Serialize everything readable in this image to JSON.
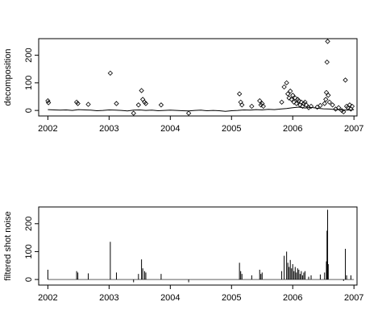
{
  "chart_data": [
    {
      "type": "scatter",
      "ylabel": "decomposition",
      "xlim": [
        2001.85,
        2007.05
      ],
      "ylim": [
        -20,
        260
      ],
      "x_ticks": [
        2002,
        2003,
        2004,
        2005,
        2006,
        2007
      ],
      "x_tick_labels": [
        "2002",
        "2003",
        "2004",
        "2005",
        "2006",
        "2007"
      ],
      "y_ticks": [
        0,
        100,
        200
      ],
      "y_tick_labels": [
        "0",
        "100",
        "200"
      ],
      "grid": false,
      "series": [
        {
          "style": "line",
          "x": [
            2002.0,
            2002.1,
            2002.2,
            2002.3,
            2002.4,
            2002.5,
            2002.6,
            2002.7,
            2002.8,
            2002.9,
            2003.0,
            2003.1,
            2003.2,
            2003.3,
            2003.4,
            2003.5,
            2003.6,
            2003.7,
            2003.8,
            2003.9,
            2004.0,
            2004.1,
            2004.2,
            2004.3,
            2004.4,
            2004.5,
            2004.6,
            2004.7,
            2004.8,
            2004.9,
            2005.0,
            2005.1,
            2005.2,
            2005.3,
            2005.4,
            2005.5,
            2005.6,
            2005.7,
            2005.8,
            2005.9,
            2006.0,
            2006.1,
            2006.2,
            2006.3,
            2006.4,
            2006.5,
            2006.6,
            2006.7,
            2006.8,
            2006.9,
            2007.0
          ],
          "y": [
            3,
            2,
            1,
            2,
            0,
            3,
            2,
            1,
            -1,
            0,
            2,
            1,
            0,
            -2,
            1,
            2,
            0,
            1,
            -1,
            0,
            1,
            0,
            -1,
            -2,
            0,
            1,
            -1,
            0,
            -1,
            -3,
            -1,
            0,
            2,
            1,
            3,
            2,
            4,
            3,
            5,
            7,
            10,
            12,
            9,
            11,
            8,
            6,
            5,
            3,
            2,
            1,
            3
          ]
        },
        {
          "style": "points",
          "x": [
            2002.0,
            2002.01,
            2002.47,
            2002.49,
            2002.66,
            2003.02,
            2003.12,
            2003.4,
            2003.48,
            2003.53,
            2003.55,
            2003.58,
            2003.6,
            2003.85,
            2004.3,
            2005.13,
            2005.15,
            2005.17,
            2005.33,
            2005.46,
            2005.48,
            2005.5,
            2005.52,
            2005.82,
            2005.86,
            2005.9,
            2005.92,
            2005.94,
            2005.96,
            2005.98,
            2006.0,
            2006.02,
            2006.04,
            2006.06,
            2006.08,
            2006.1,
            2006.12,
            2006.14,
            2006.16,
            2006.18,
            2006.2,
            2006.22,
            2006.26,
            2006.3,
            2006.4,
            2006.45,
            2006.52,
            2006.54,
            2006.55,
            2006.56,
            2006.57,
            2006.58,
            2006.6,
            2006.65,
            2006.7,
            2006.75,
            2006.8,
            2006.83,
            2006.86,
            2006.88,
            2006.9,
            2006.93,
            2006.95,
            2006.97
          ],
          "y": [
            35,
            28,
            30,
            25,
            22,
            135,
            25,
            -10,
            20,
            72,
            40,
            30,
            25,
            20,
            -10,
            60,
            30,
            20,
            15,
            35,
            20,
            25,
            15,
            30,
            85,
            100,
            60,
            45,
            70,
            40,
            55,
            30,
            45,
            25,
            40,
            35,
            20,
            30,
            15,
            25,
            30,
            20,
            10,
            15,
            12,
            18,
            25,
            40,
            65,
            175,
            250,
            55,
            30,
            20,
            5,
            10,
            0,
            -5,
            110,
            15,
            10,
            20,
            5,
            15
          ]
        }
      ]
    },
    {
      "type": "line",
      "ylabel": "filtered shot noise",
      "xlim": [
        2001.85,
        2007.05
      ],
      "ylim": [
        -20,
        260
      ],
      "x_ticks": [
        2002,
        2003,
        2004,
        2005,
        2006,
        2007
      ],
      "x_tick_labels": [
        "2002",
        "2003",
        "2004",
        "2005",
        "2006",
        "2007"
      ],
      "y_ticks": [
        0,
        100,
        200
      ],
      "y_tick_labels": [
        "0",
        "100",
        "200"
      ],
      "grid": false,
      "series": [
        {
          "style": "spikes",
          "x": [
            2002.0,
            2002.47,
            2002.49,
            2002.66,
            2003.02,
            2003.12,
            2003.4,
            2003.48,
            2003.53,
            2003.55,
            2003.58,
            2003.6,
            2003.85,
            2004.3,
            2005.13,
            2005.15,
            2005.17,
            2005.33,
            2005.46,
            2005.48,
            2005.5,
            2005.82,
            2005.86,
            2005.9,
            2005.92,
            2005.94,
            2005.96,
            2005.98,
            2006.0,
            2006.02,
            2006.04,
            2006.06,
            2006.08,
            2006.1,
            2006.12,
            2006.14,
            2006.16,
            2006.18,
            2006.2,
            2006.26,
            2006.3,
            2006.45,
            2006.52,
            2006.55,
            2006.56,
            2006.57,
            2006.58,
            2006.83,
            2006.86,
            2006.88,
            2006.95
          ],
          "y": [
            35,
            30,
            25,
            22,
            135,
            25,
            -10,
            20,
            72,
            40,
            30,
            25,
            20,
            -10,
            60,
            30,
            20,
            15,
            35,
            20,
            25,
            30,
            85,
            100,
            60,
            45,
            70,
            40,
            55,
            30,
            45,
            25,
            40,
            35,
            20,
            30,
            15,
            25,
            30,
            10,
            15,
            18,
            25,
            65,
            175,
            250,
            55,
            -5,
            110,
            15,
            15
          ]
        }
      ]
    }
  ]
}
